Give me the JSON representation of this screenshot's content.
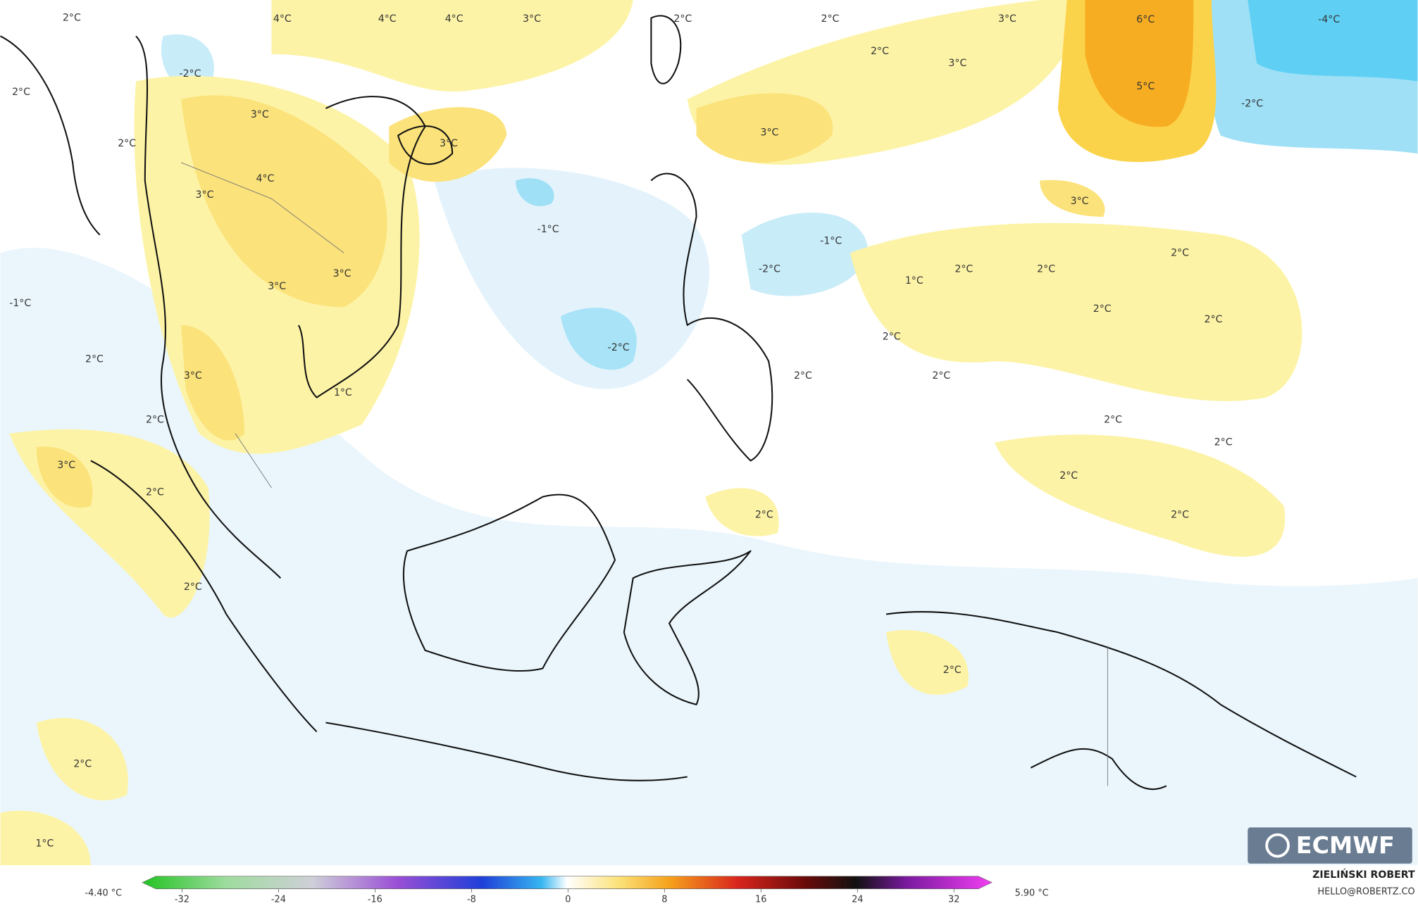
{
  "map": {
    "labels": [
      "2°C",
      "4°C",
      "4°C",
      "4°C",
      "3°C",
      "2°C",
      "2°C",
      "3°C",
      "6°C",
      "-4°C",
      "-2°C",
      "2°C",
      "3°C",
      "2°C",
      "3°C",
      "5°C",
      "-2°C",
      "2°C",
      "3°C",
      "3°C",
      "4°C",
      "3°C",
      "3°C",
      "-1°C",
      "-1°C",
      "2°C",
      "3°C",
      "2°C",
      "2°C",
      "-2°C",
      "3°C",
      "1°C",
      "-1°C",
      "2°C",
      "2°C",
      "2°C",
      "-2°C",
      "2°C",
      "3°C",
      "2°C",
      "2°C",
      "1°C",
      "2°C",
      "2°C",
      "2°C",
      "3°C",
      "2°C",
      "2°C",
      "2°C",
      "2°C",
      "2°C",
      "2°C",
      "2°C",
      "1°C"
    ],
    "colorbar": {
      "ticks": [
        -32,
        -24,
        -16,
        -8,
        0,
        8,
        16,
        24,
        32
      ],
      "min_label": "-4.40 °C",
      "max_label": "5.90 °C"
    },
    "credit": {
      "author": "ZIELIŃSKI ROBERT",
      "contact": "HELLO@ROBERTZ.CO",
      "logo": "ECMWF"
    }
  }
}
